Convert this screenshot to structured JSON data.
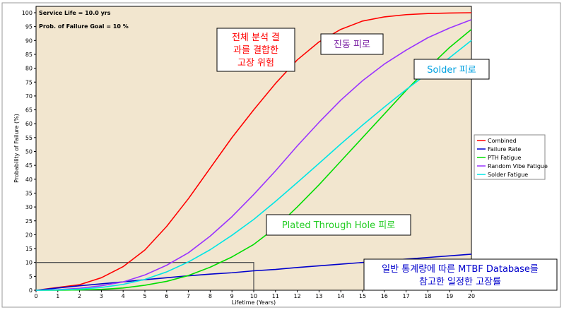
{
  "info": {
    "service_life": "Service Life = 10.0 yrs",
    "failure_goal": "Prob. of Failure Goal = 10 %"
  },
  "chart_data": {
    "type": "line",
    "title": "",
    "xlabel": "Lifetime (Years)",
    "ylabel": "Probability of Failure (%)",
    "xlim": [
      0,
      20
    ],
    "ylim": [
      0,
      100
    ],
    "x_ticks": [
      0,
      1,
      2,
      3,
      4,
      5,
      6,
      7,
      8,
      9,
      10,
      11,
      12,
      13,
      14,
      15,
      16,
      17,
      18,
      19,
      20
    ],
    "y_ticks": [
      0,
      5,
      10,
      15,
      20,
      25,
      30,
      35,
      40,
      45,
      50,
      55,
      60,
      65,
      70,
      75,
      80,
      85,
      90,
      95,
      100
    ],
    "grid": false,
    "legend_position": "right",
    "goal_box": {
      "x": 10,
      "y": 10
    },
    "series": [
      {
        "name": "Combined",
        "color": "#ff0000",
        "x": [
          0,
          1,
          2,
          3,
          4,
          5,
          6,
          7,
          8,
          9,
          10,
          11,
          12,
          13,
          14,
          15,
          16,
          17,
          18,
          19,
          20
        ],
        "y": [
          0,
          1,
          2,
          4.5,
          8.5,
          14.5,
          23,
          33,
          44,
          55,
          65,
          74.5,
          83,
          89.5,
          94,
          97,
          98.5,
          99.3,
          99.7,
          99.9,
          100
        ]
      },
      {
        "name": "Failure Rate",
        "color": "#0000cc",
        "x": [
          0,
          1,
          2,
          3,
          4,
          5,
          6,
          7,
          8,
          9,
          10,
          11,
          12,
          13,
          14,
          15,
          16,
          17,
          18,
          19,
          20
        ],
        "y": [
          0,
          0.8,
          1.6,
          2.3,
          3,
          3.8,
          4.5,
          5.2,
          5.8,
          6.3,
          7,
          7.5,
          8.2,
          8.8,
          9.4,
          10,
          10.6,
          11.2,
          11.8,
          12.4,
          13
        ]
      },
      {
        "name": "PTH Fatigue",
        "color": "#00dd00",
        "x": [
          0,
          1,
          2,
          3,
          4,
          5,
          6,
          7,
          8,
          9,
          10,
          11,
          12,
          13,
          14,
          15,
          16,
          17,
          18,
          19,
          20
        ],
        "y": [
          0,
          0,
          0.1,
          0.3,
          0.8,
          1.8,
          3.2,
          5.3,
          8.3,
          12,
          16.5,
          22.5,
          30,
          38,
          46.5,
          55,
          63.5,
          72,
          80,
          87.5,
          94
        ]
      },
      {
        "name": "Random Vibe Fatigue",
        "color": "#9933ff",
        "x": [
          0,
          1,
          2,
          3,
          4,
          5,
          6,
          7,
          8,
          9,
          10,
          11,
          12,
          13,
          14,
          15,
          16,
          17,
          18,
          19,
          20
        ],
        "y": [
          0,
          0.2,
          0.7,
          1.6,
          3,
          5.5,
          9,
          13.5,
          19.5,
          26.5,
          34.5,
          43,
          52,
          60.5,
          68.5,
          75.5,
          81.5,
          86.5,
          91,
          94.5,
          97.5
        ]
      },
      {
        "name": "Solder Fatigue",
        "color": "#00e5e5",
        "x": [
          0,
          1,
          2,
          3,
          4,
          5,
          6,
          7,
          8,
          9,
          10,
          11,
          12,
          13,
          14,
          15,
          16,
          17,
          18,
          19,
          20
        ],
        "y": [
          0,
          0.1,
          0.4,
          1,
          2.1,
          3.9,
          6.6,
          10.2,
          14.6,
          19.8,
          25.5,
          32,
          38.8,
          45.7,
          52.7,
          59.5,
          66,
          72.3,
          78.2,
          83.8,
          90
        ]
      }
    ],
    "annotations": [
      {
        "text": "전체 분석 결",
        "color": "#ff0000"
      },
      {
        "text": "과를 결합한",
        "color": "#ff0000"
      },
      {
        "text": "고장 위험",
        "color": "#ff0000"
      },
      {
        "text": "진동 피로",
        "color": "#7a1fa2"
      },
      {
        "text": "Solder 피로",
        "color": "#00a0e0"
      },
      {
        "text": "Plated Through Hole 피로",
        "color": "#22cc22"
      },
      {
        "text": "일반 통계량에 따른 MTBF Database를",
        "color": "#0000cc"
      },
      {
        "text": "참고한 일정한 고장률",
        "color": "#0000cc"
      }
    ]
  },
  "colors": {
    "plot_background": "#f2e6cf",
    "frame": "#000000",
    "goal_box": "#555555"
  }
}
